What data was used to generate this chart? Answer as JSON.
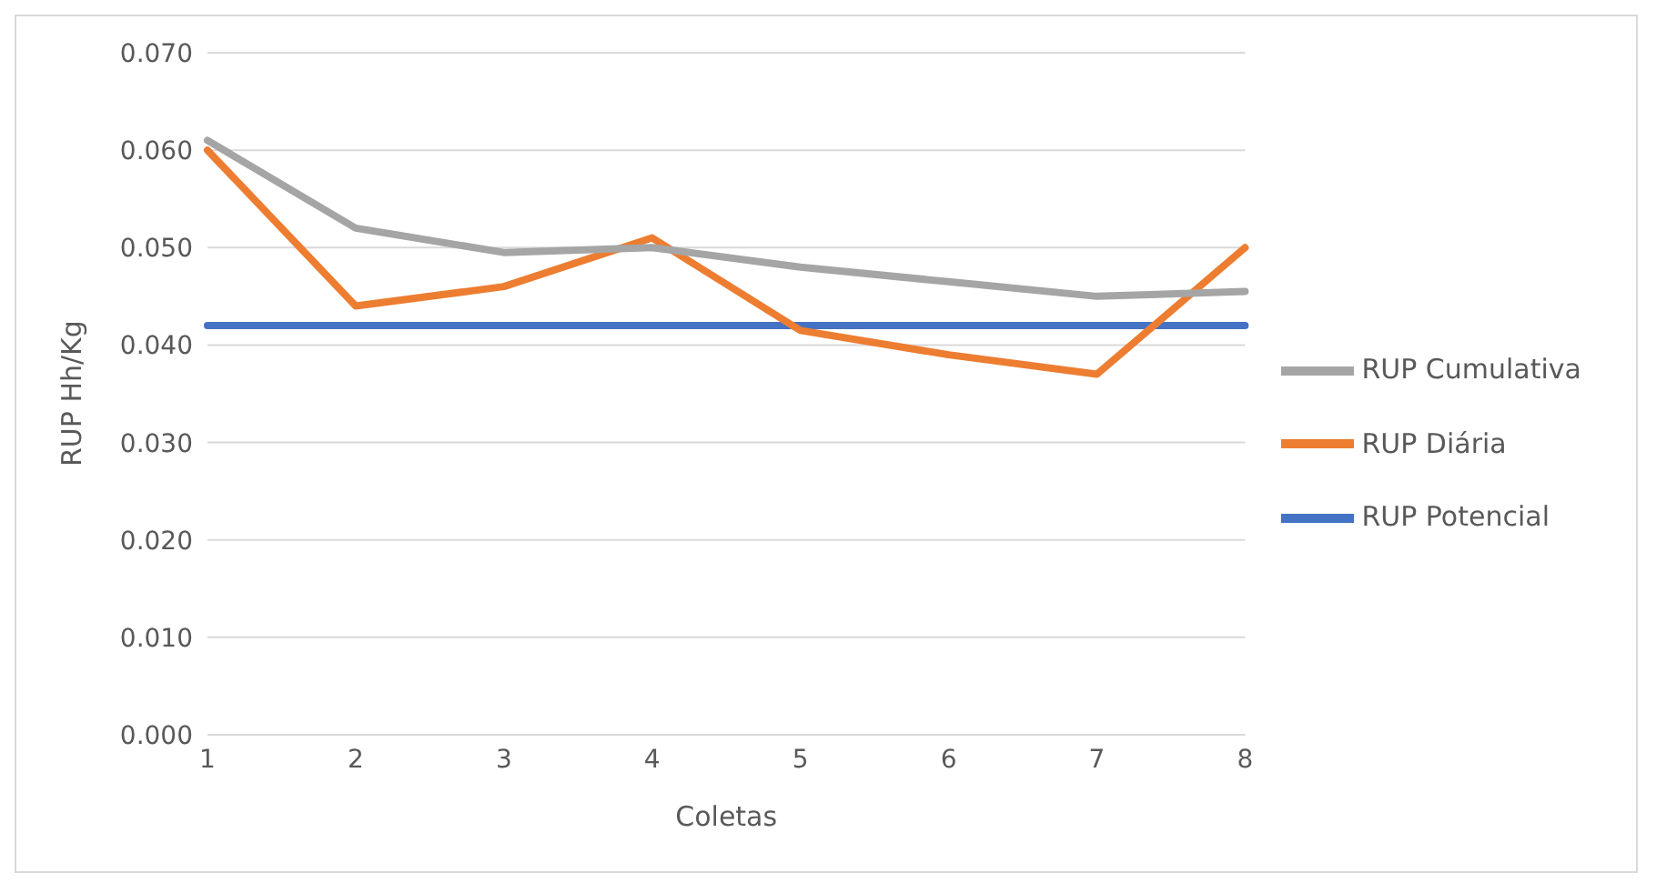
{
  "chart_data": {
    "type": "line",
    "xlabel": "Coletas",
    "ylabel": "RUP Hh/Kg",
    "categories": [
      "1",
      "2",
      "3",
      "4",
      "5",
      "6",
      "7",
      "8"
    ],
    "series": [
      {
        "name": "RUP Potencial",
        "color": "#4472c4",
        "values": [
          0.042,
          0.042,
          0.042,
          0.042,
          0.042,
          0.042,
          0.042,
          0.042
        ]
      },
      {
        "name": "RUP Diária",
        "color": "#ed7d31",
        "values": [
          0.06,
          0.044,
          0.046,
          0.051,
          0.0415,
          0.039,
          0.037,
          0.05
        ]
      },
      {
        "name": "RUP Cumulativa",
        "color": "#a5a5a5",
        "values": [
          0.061,
          0.052,
          0.0495,
          0.05,
          0.048,
          0.0465,
          0.045,
          0.0455
        ]
      }
    ],
    "ylim": [
      0,
      0.07
    ],
    "yticks": [
      {
        "value": 0,
        "label": "0.000"
      },
      {
        "value": 0.01,
        "label": "0.010"
      },
      {
        "value": 0.02,
        "label": "0.020"
      },
      {
        "value": 0.03,
        "label": "0.030"
      },
      {
        "value": 0.04,
        "label": "0.040"
      },
      {
        "value": 0.05,
        "label": "0.050"
      },
      {
        "value": 0.06,
        "label": "0.060"
      },
      {
        "value": 0.07,
        "label": "0.070"
      }
    ],
    "grid": "y",
    "legend": "right",
    "marker": "none",
    "line_style": "solid"
  }
}
